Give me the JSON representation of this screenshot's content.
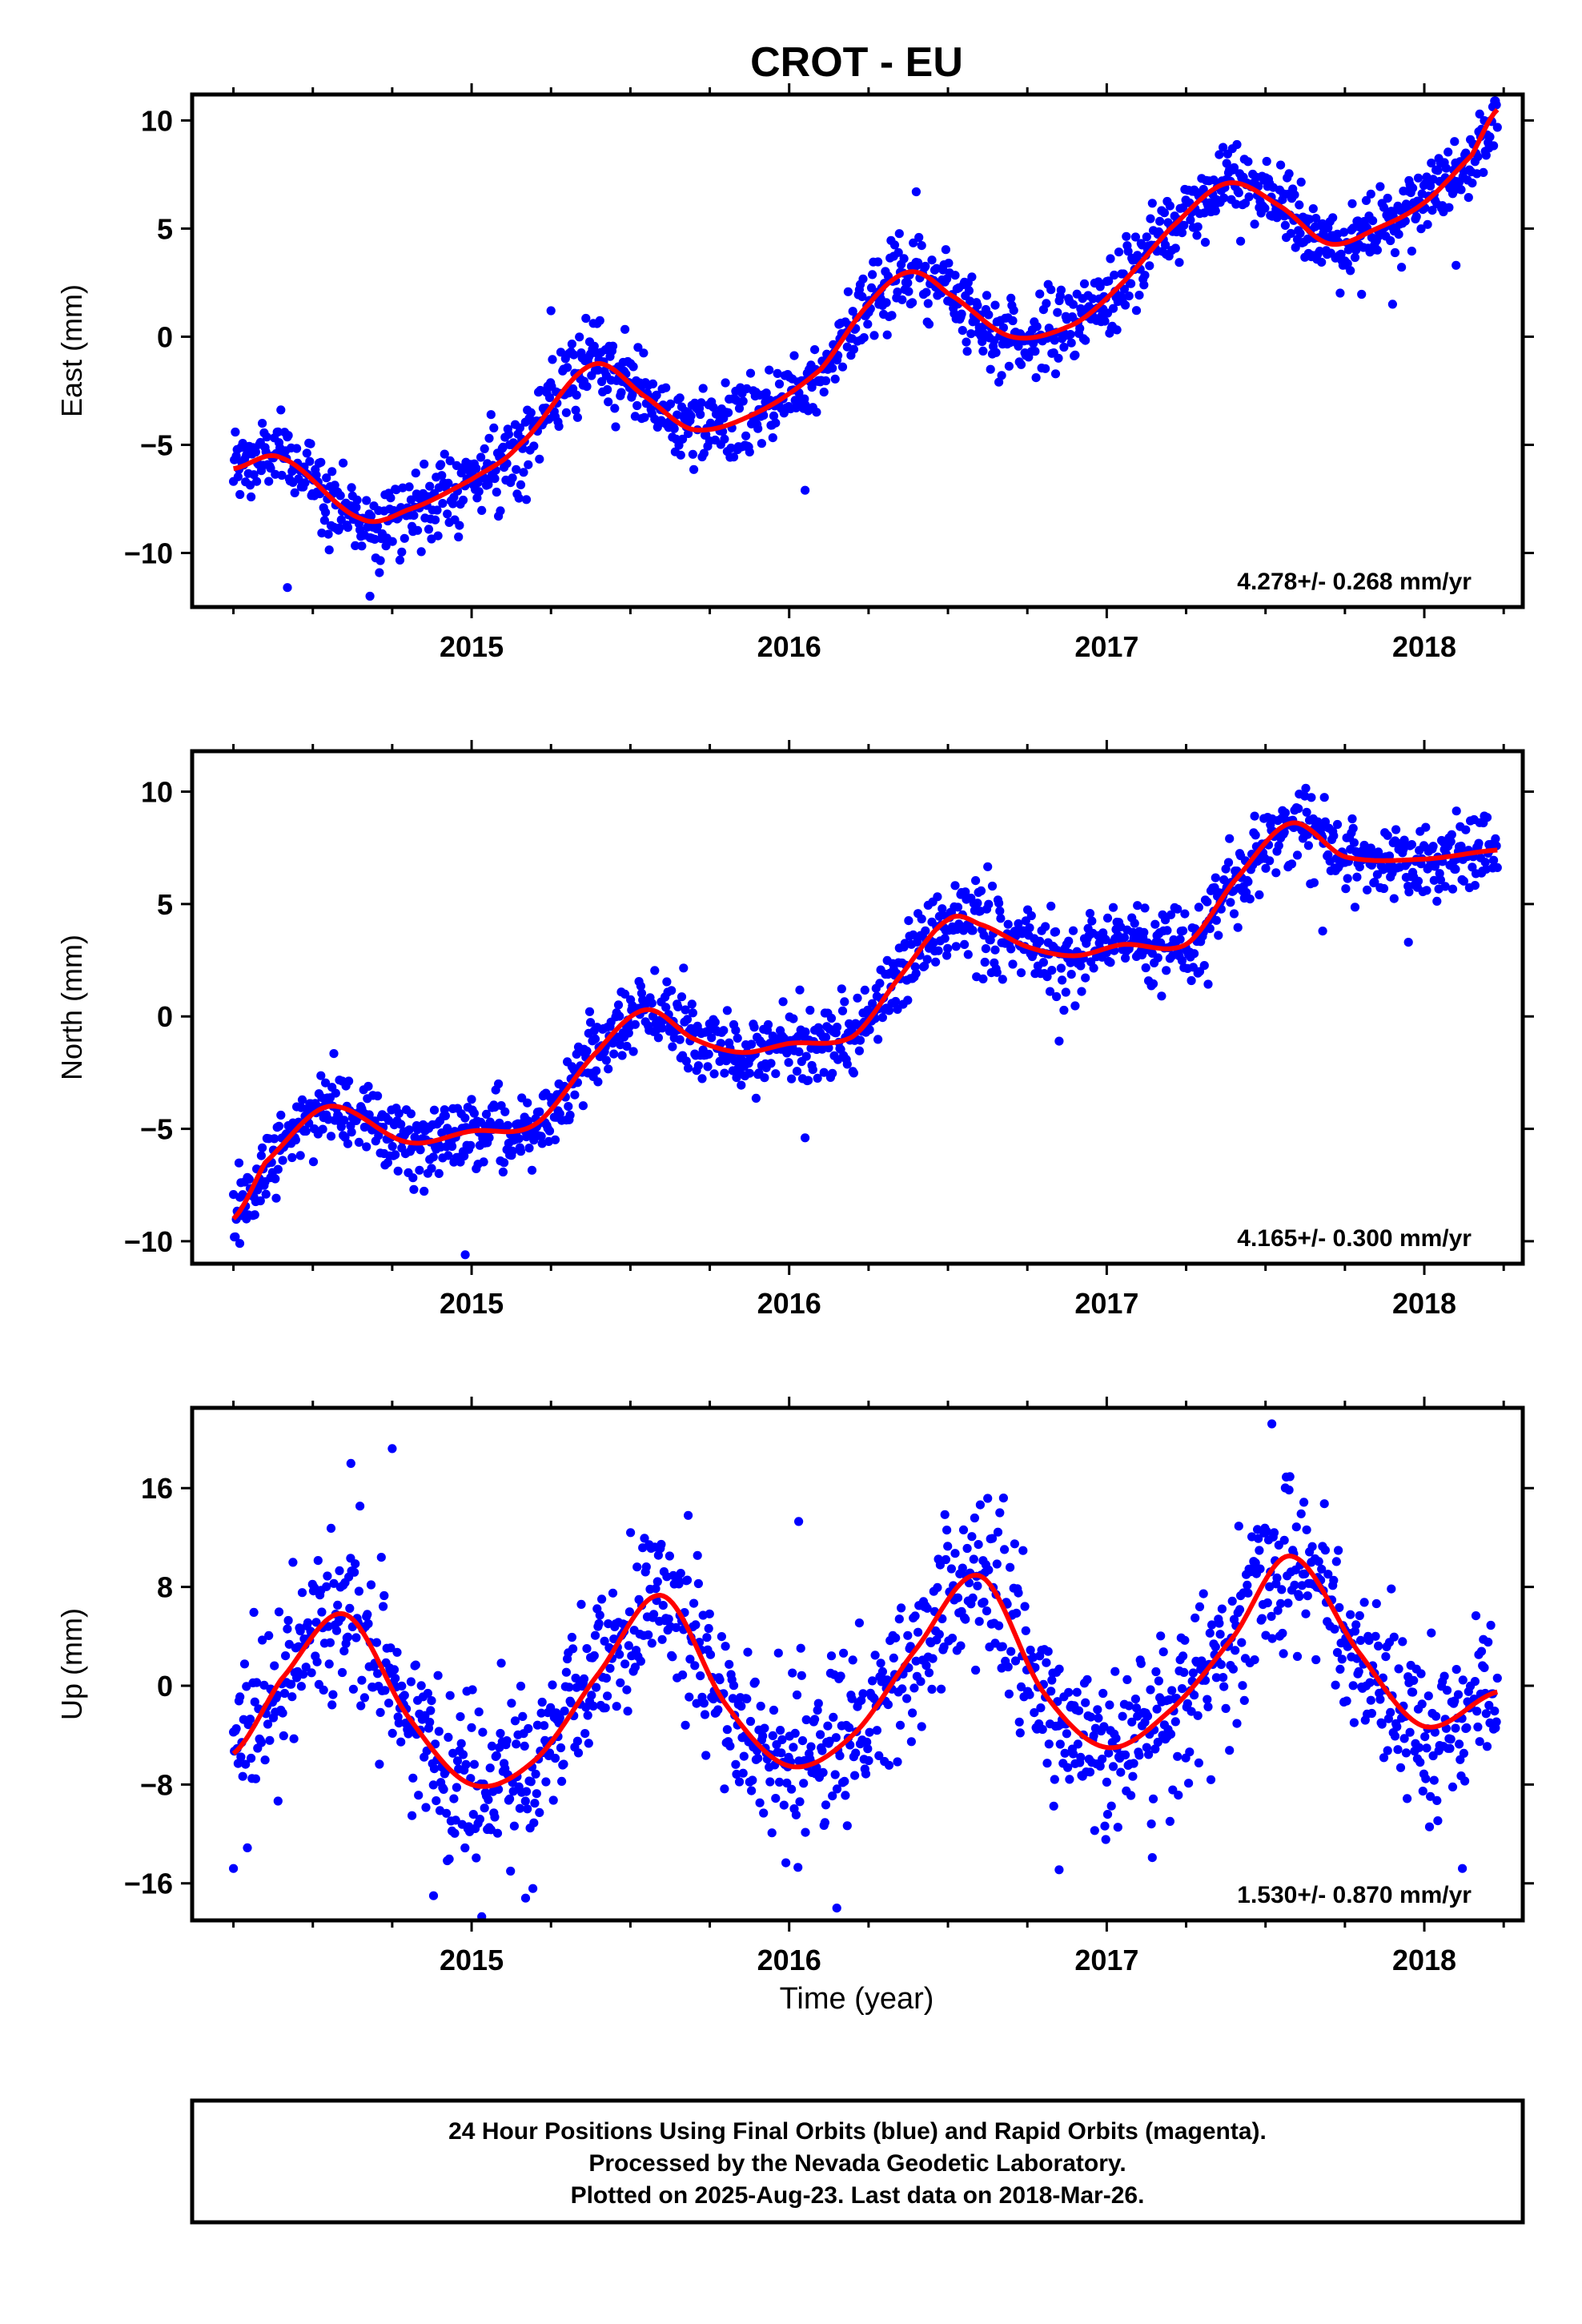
{
  "title": "CROT - EU",
  "xlabel": "Time (year)",
  "caption": [
    "24 Hour Positions Using Final Orbits (blue) and Rapid Orbits (magenta).",
    "Processed by the Nevada Geodetic Laboratory.",
    "Plotted on 2025-Aug-23. Last data on 2018-Mar-26."
  ],
  "colors": {
    "points": "#0000ff",
    "fit": "#ff0000",
    "frame": "#000000"
  },
  "chart_data": [
    {
      "type": "scatter",
      "ylabel": "East (mm)",
      "rate_label": "4.278+/- 0.268 mm/yr",
      "xlim": [
        2014.12,
        2018.31
      ],
      "ylim": [
        -12.5,
        11.2
      ],
      "x_ticks": [
        2015,
        2016,
        2017,
        2018
      ],
      "y_ticks": [
        -10,
        -5,
        0,
        5,
        10
      ],
      "y_tick_labels": [
        "−10",
        "−5",
        "0",
        "5",
        "10"
      ],
      "grid": false,
      "series": [
        {
          "label": "positions",
          "style": "points",
          "x_start": 2014.25,
          "x_end": 2018.23,
          "n_points": 1360,
          "scatter_sd": 0.9,
          "anchors_x": [
            2014.25,
            2014.4,
            2014.65,
            2014.8,
            2015.0,
            2015.15,
            2015.38,
            2015.55,
            2015.7,
            2015.9,
            2016.1,
            2016.25,
            2016.38,
            2016.5,
            2016.7,
            2016.9,
            2017.05,
            2017.2,
            2017.38,
            2017.55,
            2017.7,
            2017.85,
            2018.0,
            2018.15,
            2018.23
          ],
          "anchors_y": [
            -6.1,
            -5.6,
            -8.4,
            -8.0,
            -6.6,
            -5.0,
            -1.3,
            -2.8,
            -4.3,
            -3.5,
            -1.5,
            1.5,
            3.0,
            2.0,
            0.0,
            0.6,
            2.5,
            5.0,
            7.1,
            6.0,
            4.3,
            5.0,
            6.2,
            8.4,
            10.5
          ]
        }
      ],
      "outliers": [
        {
          "x": 2014.42,
          "y": -11.6
        },
        {
          "x": 2014.68,
          "y": -12.0
        },
        {
          "x": 2015.25,
          "y": 1.2
        },
        {
          "x": 2016.05,
          "y": -7.1
        },
        {
          "x": 2016.4,
          "y": 6.7
        },
        {
          "x": 2017.9,
          "y": 1.5
        },
        {
          "x": 2018.1,
          "y": 3.3
        }
      ]
    },
    {
      "type": "scatter",
      "ylabel": "North (mm)",
      "rate_label": "4.165+/- 0.300 mm/yr",
      "xlim": [
        2014.12,
        2018.31
      ],
      "ylim": [
        -11.0,
        11.8
      ],
      "x_ticks": [
        2015,
        2016,
        2017,
        2018
      ],
      "y_ticks": [
        -10,
        -5,
        0,
        5,
        10
      ],
      "y_tick_labels": [
        "−10",
        "−5",
        "0",
        "5",
        "10"
      ],
      "grid": false,
      "series": [
        {
          "label": "positions",
          "style": "points",
          "x_start": 2014.25,
          "x_end": 2018.23,
          "n_points": 1360,
          "scatter_sd": 0.85,
          "anchors_x": [
            2014.25,
            2014.35,
            2014.55,
            2014.8,
            2015.0,
            2015.2,
            2015.4,
            2015.55,
            2015.7,
            2015.85,
            2016.0,
            2016.2,
            2016.35,
            2016.5,
            2016.6,
            2016.75,
            2016.9,
            2017.05,
            2017.25,
            2017.4,
            2017.58,
            2017.75,
            2018.0,
            2018.23
          ],
          "anchors_y": [
            -9.0,
            -6.5,
            -4.0,
            -5.6,
            -5.1,
            -4.8,
            -1.5,
            0.3,
            -1.0,
            -1.6,
            -1.2,
            -0.9,
            1.8,
            4.3,
            4.1,
            3.1,
            2.7,
            3.2,
            3.2,
            6.0,
            8.6,
            7.1,
            7.0,
            7.4
          ]
        }
      ],
      "outliers": [
        {
          "x": 2014.98,
          "y": -10.6
        },
        {
          "x": 2014.27,
          "y": -10.1
        },
        {
          "x": 2016.05,
          "y": -5.4
        },
        {
          "x": 2016.85,
          "y": -1.1
        },
        {
          "x": 2017.68,
          "y": 3.8
        },
        {
          "x": 2017.95,
          "y": 3.3
        }
      ]
    },
    {
      "type": "scatter",
      "ylabel": "Up (mm)",
      "rate_label": "1.530+/- 0.870 mm/yr",
      "xlim": [
        2014.12,
        2018.31
      ],
      "ylim": [
        -19.0,
        22.5
      ],
      "x_ticks": [
        2015,
        2016,
        2017,
        2018
      ],
      "y_ticks": [
        -16,
        -8,
        0,
        8,
        16
      ],
      "y_tick_labels": [
        "−16",
        "−8",
        "0",
        "8",
        "16"
      ],
      "grid": false,
      "series": [
        {
          "label": "positions",
          "style": "points",
          "x_start": 2014.25,
          "x_end": 2018.23,
          "n_points": 1360,
          "scatter_sd": 3.3,
          "anchors_x": [
            2014.25,
            2014.4,
            2014.6,
            2014.8,
            2015.0,
            2015.2,
            2015.4,
            2015.6,
            2015.8,
            2016.0,
            2016.2,
            2016.4,
            2016.6,
            2016.8,
            2017.0,
            2017.2,
            2017.4,
            2017.58,
            2017.8,
            2018.0,
            2018.23
          ],
          "anchors_y": [
            -5.5,
            0.5,
            5.8,
            -2.5,
            -8.0,
            -6.0,
            1.0,
            7.3,
            -1.5,
            -6.5,
            -4.0,
            3.0,
            8.9,
            -0.5,
            -5.0,
            -2.0,
            4.0,
            10.5,
            2.5,
            -3.3,
            -0.5
          ]
        }
      ],
      "outliers": [
        {
          "x": 2014.25,
          "y": -14.8
        },
        {
          "x": 2014.62,
          "y": 18.0
        },
        {
          "x": 2014.75,
          "y": 19.2
        },
        {
          "x": 2014.88,
          "y": -17.0
        },
        {
          "x": 2015.17,
          "y": -17.2
        },
        {
          "x": 2016.03,
          "y": 13.3
        },
        {
          "x": 2016.15,
          "y": -18.0
        },
        {
          "x": 2016.85,
          "y": -14.9
        },
        {
          "x": 2017.52,
          "y": 21.2
        },
        {
          "x": 2018.12,
          "y": -14.8
        }
      ]
    }
  ]
}
